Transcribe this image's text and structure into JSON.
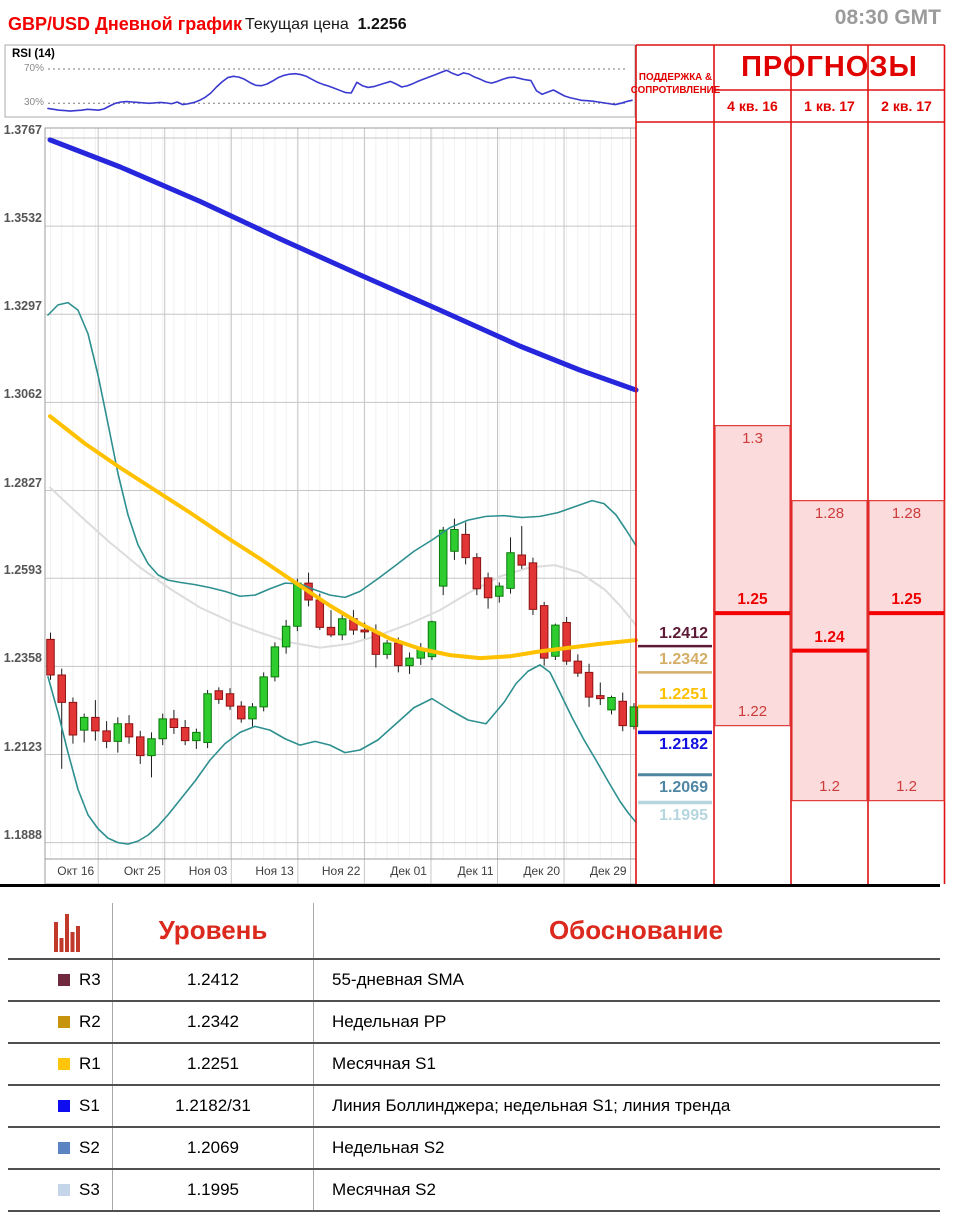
{
  "header": {
    "title": "GBP/USD Дневной график",
    "price_label": "Текущая цена",
    "price_value": "1.2256",
    "time": "08:30 GMT"
  },
  "chart_data": {
    "type": "candlestick",
    "title": "GBP/USD Дневной график",
    "current_price": 1.2256,
    "y_axis_labels": [
      "1.3767",
      "1.3532",
      "1.3297",
      "1.3062",
      "1.2827",
      "1.2593",
      "1.2358",
      "1.2123",
      "1.1888"
    ],
    "x_axis_labels": [
      "Окт 16",
      "Окт 25",
      "Ноя 03",
      "Ноя 13",
      "Ноя 22",
      "Дек 01",
      "Дек 11",
      "Дек 20",
      "Дек 29"
    ],
    "rsi": {
      "label": "RSI (14)",
      "upper_label": "70%",
      "lower_label": "30%",
      "upper": 70,
      "lower": 30,
      "values": [
        24,
        23,
        22,
        21.5,
        21,
        21.5,
        22,
        23,
        22.5,
        22,
        23.5,
        27,
        30,
        31.5,
        32,
        31.5,
        31,
        30.5,
        30,
        30.5,
        31,
        30.5,
        29.5,
        31.5,
        28.5,
        29.5,
        31,
        33.5,
        37,
        42,
        49,
        55,
        60,
        61.5,
        60.5,
        58,
        54,
        51,
        50.5,
        52.5,
        56,
        60,
        62.5,
        64,
        64.5,
        63.5,
        61.5,
        58,
        54.5,
        52,
        50,
        47.5,
        45,
        42.5,
        42,
        54.5,
        50.5,
        48.5,
        49.5,
        51.5,
        53.5,
        55.5,
        52.5,
        49,
        50.5,
        53,
        56,
        58.5,
        61,
        63.5,
        66,
        68.5,
        65,
        62.5,
        65.5,
        64,
        60.5,
        58,
        55,
        53.5,
        55.5,
        58,
        60,
        60.5,
        59,
        57.5,
        56.5,
        44.5,
        40.5,
        43,
        45.5,
        42,
        38.5,
        36.5,
        35,
        33.5,
        33,
        32.5,
        31.5,
        30.5,
        29.5,
        28.5,
        30,
        32,
        33.5
      ]
    },
    "candles": [
      [
        1.243,
        1.2448,
        1.2322,
        1.2335
      ],
      [
        1.2335,
        1.2352,
        1.2085,
        1.2262
      ],
      [
        1.2262,
        1.2275,
        1.2152,
        1.2175
      ],
      [
        1.2188,
        1.2232,
        1.2155,
        1.2222
      ],
      [
        1.2222,
        1.2268,
        1.216,
        1.2186
      ],
      [
        1.2186,
        1.2212,
        1.214,
        1.2158
      ],
      [
        1.2158,
        1.2222,
        1.2128,
        1.2205
      ],
      [
        1.2205,
        1.2228,
        1.2152,
        1.217
      ],
      [
        1.217,
        1.2186,
        1.2098,
        1.212
      ],
      [
        1.212,
        1.2182,
        1.2062,
        1.2165
      ],
      [
        1.2165,
        1.2232,
        1.2148,
        1.2218
      ],
      [
        1.2218,
        1.2242,
        1.2178,
        1.2195
      ],
      [
        1.2195,
        1.2215,
        1.2148,
        1.216
      ],
      [
        1.216,
        1.2192,
        1.2138,
        1.2182
      ],
      [
        1.2155,
        1.2295,
        1.214,
        1.2285
      ],
      [
        1.2293,
        1.2302,
        1.2258,
        1.227
      ],
      [
        1.2285,
        1.23,
        1.2242,
        1.2252
      ],
      [
        1.2252,
        1.2265,
        1.2208,
        1.2218
      ],
      [
        1.2218,
        1.226,
        1.2198,
        1.225
      ],
      [
        1.225,
        1.2342,
        1.2238,
        1.233
      ],
      [
        1.233,
        1.2422,
        1.2318,
        1.241
      ],
      [
        1.241,
        1.2482,
        1.2392,
        1.2465
      ],
      [
        1.2465,
        1.2592,
        1.2452,
        1.258
      ],
      [
        1.258,
        1.2608,
        1.2518,
        1.2535
      ],
      [
        1.2535,
        1.2552,
        1.2455,
        1.2462
      ],
      [
        1.2462,
        1.2508,
        1.2436,
        1.2442
      ],
      [
        1.2442,
        1.2502,
        1.2428,
        1.2485
      ],
      [
        1.2485,
        1.2508,
        1.2442,
        1.2455
      ],
      [
        1.2455,
        1.2475,
        1.2432,
        1.245
      ],
      [
        1.245,
        1.247,
        1.2355,
        1.239
      ],
      [
        1.239,
        1.2428,
        1.2378,
        1.242
      ],
      [
        1.242,
        1.2435,
        1.2342,
        1.236
      ],
      [
        1.236,
        1.2395,
        1.2338,
        1.238
      ],
      [
        1.238,
        1.242,
        1.2362,
        1.2405
      ],
      [
        1.2384,
        1.248,
        1.2375,
        1.2477
      ],
      [
        1.2572,
        1.273,
        1.2548,
        1.2721
      ],
      [
        1.2665,
        1.2752,
        1.2642,
        1.2723
      ],
      [
        1.271,
        1.2742,
        1.263,
        1.2648
      ],
      [
        1.2648,
        1.266,
        1.2548,
        1.2565
      ],
      [
        1.2594,
        1.2608,
        1.2512,
        1.2541
      ],
      [
        1.2545,
        1.2582,
        1.2528,
        1.2572
      ],
      [
        1.2566,
        1.2702,
        1.2552,
        1.2661
      ],
      [
        1.2655,
        1.2732,
        1.2618,
        1.2628
      ],
      [
        1.2634,
        1.2648,
        1.2495,
        1.251
      ],
      [
        1.252,
        1.253,
        1.236,
        1.238
      ],
      [
        1.2385,
        1.2472,
        1.2375,
        1.2468
      ],
      [
        1.2475,
        1.249,
        1.2362,
        1.2372
      ],
      [
        1.2372,
        1.239,
        1.233,
        1.234
      ],
      [
        1.2342,
        1.2365,
        1.225,
        1.2276
      ],
      [
        1.228,
        1.2315,
        1.2255,
        1.2272
      ],
      [
        1.2242,
        1.228,
        1.223,
        1.2275
      ],
      [
        1.2265,
        1.2288,
        1.2185,
        1.22
      ],
      [
        1.2198,
        1.226,
        1.219,
        1.225
      ]
    ],
    "overlays": {
      "trend_line": [
        [
          50,
          1.3762
        ],
        [
          120,
          1.369
        ],
        [
          200,
          1.3598
        ],
        [
          280,
          1.3498
        ],
        [
          360,
          1.3402
        ],
        [
          440,
          1.3308
        ],
        [
          520,
          1.3212
        ],
        [
          580,
          1.3148
        ],
        [
          636,
          1.3095
        ]
      ],
      "sma55": [
        [
          50,
          1.3025
        ],
        [
          85,
          1.2952
        ],
        [
          120,
          1.2888
        ],
        [
          155,
          1.2828
        ],
        [
          190,
          1.2768
        ],
        [
          225,
          1.2705
        ],
        [
          260,
          1.2645
        ],
        [
          295,
          1.2582
        ],
        [
          330,
          1.252
        ],
        [
          360,
          1.2472
        ],
        [
          390,
          1.2432
        ],
        [
          420,
          1.2405
        ],
        [
          450,
          1.2388
        ],
        [
          480,
          1.238
        ],
        [
          510,
          1.2385
        ],
        [
          540,
          1.2398
        ],
        [
          570,
          1.2408
        ],
        [
          600,
          1.2418
        ],
        [
          636,
          1.2428
        ]
      ],
      "sma21": [
        [
          50,
          1.2835
        ],
        [
          80,
          1.276
        ],
        [
          110,
          1.2688
        ],
        [
          140,
          1.2622
        ],
        [
          170,
          1.2565
        ],
        [
          200,
          1.2515
        ],
        [
          230,
          1.2478
        ],
        [
          260,
          1.2448
        ],
        [
          290,
          1.2422
        ],
        [
          320,
          1.2408
        ],
        [
          350,
          1.2418
        ],
        [
          380,
          1.2442
        ],
        [
          410,
          1.2472
        ],
        [
          440,
          1.2508
        ],
        [
          470,
          1.2556
        ],
        [
          500,
          1.2598
        ],
        [
          530,
          1.2622
        ],
        [
          555,
          1.2628
        ],
        [
          580,
          1.2608
        ],
        [
          605,
          1.2562
        ],
        [
          620,
          1.252
        ],
        [
          636,
          1.2468
        ]
      ],
      "bb_upper": [
        [
          48,
          1.3295
        ],
        [
          58,
          1.3322
        ],
        [
          68,
          1.3328
        ],
        [
          78,
          1.3308
        ],
        [
          88,
          1.3245
        ],
        [
          98,
          1.3135
        ],
        [
          108,
          1.3005
        ],
        [
          118,
          1.2872
        ],
        [
          128,
          1.2762
        ],
        [
          138,
          1.2682
        ],
        [
          148,
          1.2632
        ],
        [
          158,
          1.2602
        ],
        [
          168,
          1.2588
        ],
        [
          180,
          1.2582
        ],
        [
          195,
          1.2576
        ],
        [
          210,
          1.2568
        ],
        [
          225,
          1.2558
        ],
        [
          240,
          1.2545
        ],
        [
          255,
          1.2548
        ],
        [
          270,
          1.2565
        ],
        [
          285,
          1.258
        ],
        [
          300,
          1.2578
        ],
        [
          315,
          1.2562
        ],
        [
          330,
          1.2548
        ],
        [
          345,
          1.2542
        ],
        [
          360,
          1.2558
        ],
        [
          378,
          1.2592
        ],
        [
          396,
          1.2628
        ],
        [
          414,
          1.2665
        ],
        [
          432,
          1.2695
        ],
        [
          450,
          1.2728
        ],
        [
          468,
          1.2748
        ],
        [
          486,
          1.2758
        ],
        [
          504,
          1.276
        ],
        [
          522,
          1.2755
        ],
        [
          540,
          1.2758
        ],
        [
          558,
          1.2768
        ],
        [
          576,
          1.2785
        ],
        [
          592,
          1.28
        ],
        [
          604,
          1.2792
        ],
        [
          616,
          1.2762
        ],
        [
          626,
          1.2722
        ],
        [
          636,
          1.268
        ]
      ],
      "bb_lower": [
        [
          48,
          1.233
        ],
        [
          58,
          1.2235
        ],
        [
          68,
          1.2128
        ],
        [
          78,
          1.203
        ],
        [
          88,
          1.1962
        ],
        [
          98,
          1.1925
        ],
        [
          108,
          1.19
        ],
        [
          118,
          1.1888
        ],
        [
          128,
          1.1884
        ],
        [
          138,
          1.1892
        ],
        [
          148,
          1.1908
        ],
        [
          158,
          1.1932
        ],
        [
          168,
          1.1962
        ],
        [
          180,
          1.2002
        ],
        [
          195,
          1.2052
        ],
        [
          210,
          1.2108
        ],
        [
          225,
          1.2152
        ],
        [
          240,
          1.2182
        ],
        [
          255,
          1.2198
        ],
        [
          270,
          1.2188
        ],
        [
          285,
          1.2165
        ],
        [
          300,
          1.2148
        ],
        [
          315,
          1.2158
        ],
        [
          330,
          1.2148
        ],
        [
          345,
          1.2128
        ],
        [
          360,
          1.2135
        ],
        [
          378,
          1.2162
        ],
        [
          396,
          1.2205
        ],
        [
          414,
          1.2248
        ],
        [
          432,
          1.2272
        ],
        [
          450,
          1.2242
        ],
        [
          468,
          1.2215
        ],
        [
          486,
          1.2205
        ],
        [
          504,
          1.2262
        ],
        [
          516,
          1.2312
        ],
        [
          528,
          1.2345
        ],
        [
          540,
          1.2362
        ],
        [
          550,
          1.2342
        ],
        [
          560,
          1.2288
        ],
        [
          572,
          1.2222
        ],
        [
          584,
          1.2162
        ],
        [
          596,
          1.2108
        ],
        [
          608,
          1.2052
        ],
        [
          620,
          1.1998
        ],
        [
          628,
          1.1968
        ],
        [
          636,
          1.1942
        ]
      ]
    },
    "sr_header": {
      "line1": "ПОДДЕРЖКА &",
      "line2": "СОПРОТИВЛЕНИЕ"
    },
    "support_resistance": [
      {
        "key": "R3",
        "level": 1.2412,
        "label": "1.2412",
        "side": "R",
        "color": "#5C1A36"
      },
      {
        "key": "R2",
        "level": 1.2342,
        "label": "1.2342",
        "side": "R",
        "color": "#D4AE66"
      },
      {
        "key": "R1",
        "level": 1.2251,
        "label": "1.2251",
        "side": "R",
        "color": "#FFC000"
      },
      {
        "key": "S1",
        "level": 1.2182,
        "label": "1.2182",
        "side": "S",
        "color": "#1111E0"
      },
      {
        "key": "S2",
        "level": 1.2069,
        "label": "1.2069",
        "side": "S",
        "color": "#4E86A4"
      },
      {
        "key": "S3",
        "level": 1.1995,
        "label": "1.1995",
        "side": "S",
        "color": "#B5D6DE"
      }
    ],
    "forecasts": {
      "title": "ПРОГНОЗЫ",
      "columns": [
        {
          "label": "4 кв. 16",
          "high": 1.3,
          "high_label": "1.3",
          "point": 1.25,
          "point_label": "1.25",
          "low": 1.22,
          "low_label": "1.22"
        },
        {
          "label": "1 кв. 17",
          "high": 1.28,
          "high_label": "1.28",
          "point": 1.24,
          "point_label": "1.24",
          "low": 1.2,
          "low_label": "1.2"
        },
        {
          "label": "2 кв. 17",
          "high": 1.28,
          "high_label": "1.28",
          "point": 1.25,
          "point_label": "1.25",
          "low": 1.2,
          "low_label": "1.2"
        }
      ],
      "accent_color": "#E00000",
      "band_fill": "#FBDBDB"
    },
    "colors": {
      "candle_up": "#2FCC2F",
      "candle_down": "#E23535",
      "bollinger": "#2E8F8F",
      "sma55": "#FFC100",
      "sma21": "#DCDCDC",
      "trend": "#2626DC",
      "rsi": "#3A3AD0"
    }
  },
  "table": {
    "level_header": "Уровень",
    "reason_header": "Обоснование",
    "rows": [
      {
        "key": "R3",
        "level": "1.2412",
        "reason": "55-дневная SMA",
        "color": "#6F2A3F"
      },
      {
        "key": "R2",
        "level": "1.2342",
        "reason": "Недельная PP",
        "color": "#C7940E"
      },
      {
        "key": "R1",
        "level": "1.2251",
        "reason": "Месячная S1",
        "color": "#FFC40C"
      },
      {
        "key": "S1",
        "level": "1.2182/31",
        "reason": "Линия Боллинджера; недельная S1; линия тренда",
        "color": "#0D0DF0"
      },
      {
        "key": "S2",
        "level": "1.2069",
        "reason": "Недельная S2",
        "color": "#5B85C2"
      },
      {
        "key": "S3",
        "level": "1.1995",
        "reason": "Месячная S2",
        "color": "#C5D5EA"
      }
    ]
  }
}
